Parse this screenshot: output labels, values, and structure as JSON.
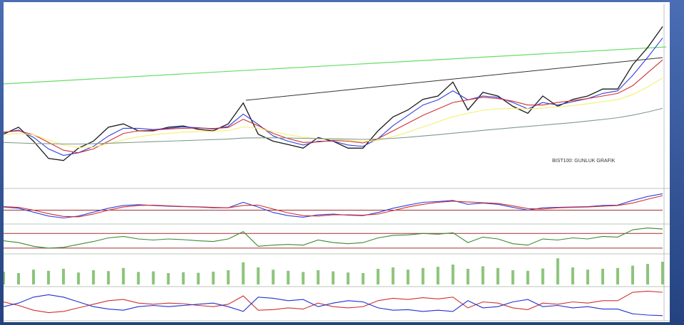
{
  "chart_data": [
    {
      "type": "line",
      "annotation": "BIST100: GUNLUK GRAFIK",
      "ylim": [
        70000,
        140000
      ],
      "series": [
        {
          "color": "#1a1a1a",
          "values": [
            90200,
            92900,
            87500,
            80800,
            80000,
            84800,
            87500,
            92900,
            94200,
            91500,
            91500,
            92900,
            93400,
            92100,
            91500,
            94200,
            102300,
            90200,
            87500,
            86200,
            84800,
            88900,
            87500,
            84800,
            84800,
            91500,
            96900,
            99600,
            103700,
            105000,
            110400,
            99600,
            106400,
            105000,
            101000,
            98300,
            105000,
            101000,
            103700,
            105000,
            107700,
            107700,
            117100,
            123800,
            131900
          ]
        },
        {
          "color": "#3040e0",
          "values": [
            90800,
            91800,
            89000,
            84500,
            82000,
            83000,
            85500,
            89500,
            92500,
            92500,
            92000,
            92500,
            93000,
            92700,
            92200,
            93200,
            98000,
            94000,
            89500,
            87500,
            86000,
            87500,
            87500,
            86000,
            85500,
            88500,
            93500,
            97500,
            101500,
            103500,
            107000,
            103500,
            105000,
            104500,
            102500,
            100000,
            102500,
            101500,
            102800,
            104000,
            106000,
            107000,
            113000,
            120000,
            127500
          ]
        },
        {
          "color": "#d03030",
          "values": [
            91000,
            91500,
            90000,
            87000,
            84000,
            83000,
            84500,
            87500,
            90500,
            91500,
            91800,
            92200,
            92500,
            92600,
            92400,
            92800,
            96000,
            93500,
            90500,
            88500,
            87000,
            87200,
            87800,
            87500,
            86800,
            88500,
            91500,
            94500,
            97500,
            100000,
            102500,
            103500,
            104500,
            104000,
            103000,
            101500,
            101500,
            102500,
            103200,
            104000,
            105000,
            106000,
            109000,
            114000,
            119000
          ]
        },
        {
          "color": "#f5ef70",
          "values": [
            90000,
            90500,
            90000,
            88000,
            86000,
            85000,
            85200,
            86500,
            88000,
            89200,
            90000,
            90500,
            91000,
            91200,
            91300,
            91600,
            93000,
            92500,
            91200,
            90000,
            89000,
            88500,
            88200,
            87800,
            87400,
            87800,
            89200,
            91000,
            93000,
            95000,
            97000,
            98300,
            99500,
            100000,
            100200,
            100000,
            100300,
            100800,
            101300,
            102000,
            102800,
            103600,
            105500,
            108500,
            112000
          ]
        },
        {
          "color": "#7f9a8a",
          "values": [
            87000,
            86800,
            86600,
            86500,
            86400,
            86400,
            86500,
            86700,
            86900,
            87100,
            87300,
            87500,
            87700,
            87900,
            88100,
            88300,
            88700,
            88800,
            88800,
            88700,
            88600,
            88500,
            88400,
            88300,
            88200,
            88300,
            88600,
            89000,
            89500,
            90000,
            90600,
            91100,
            91700,
            92200,
            92700,
            93200,
            93700,
            94200,
            94700,
            95300,
            95900,
            96600,
            97600,
            98800,
            100200
          ]
        }
      ]
    },
    {
      "type": "line",
      "ylim": [
        -3000,
        5000
      ],
      "hlines": [
        0
      ],
      "series": [
        {
          "color": "#3040e0",
          "values": [
            800,
            500,
            -500,
            -1500,
            -2000,
            -1500,
            -500,
            500,
            1200,
            1400,
            1200,
            1000,
            900,
            800,
            600,
            600,
            2000,
            800,
            -600,
            -1400,
            -1800,
            -1200,
            -1000,
            -1300,
            -1400,
            -600,
            500,
            1300,
            2000,
            2200,
            2500,
            1500,
            1800,
            1500,
            700,
            0,
            600,
            700,
            800,
            900,
            1200,
            1300,
            2500,
            3500,
            4200
          ]
        },
        {
          "color": "#d03030",
          "values": [
            900,
            700,
            0,
            -900,
            -1600,
            -1700,
            -1000,
            0,
            800,
            1200,
            1300,
            1100,
            950,
            850,
            700,
            600,
            1200,
            1300,
            300,
            -700,
            -1400,
            -1500,
            -1200,
            -1200,
            -1300,
            -1000,
            -100,
            800,
            1500,
            2000,
            2300,
            2100,
            1900,
            1700,
            1100,
            400,
            300,
            600,
            700,
            800,
            1000,
            1200,
            1800,
            2800,
            3700
          ]
        }
      ]
    },
    {
      "type": "line",
      "ylim": [
        20,
        90
      ],
      "hlines": [
        70,
        30
      ],
      "series": [
        {
          "color": "#3c8a30",
          "values": [
            50,
            45,
            35,
            30,
            32,
            40,
            48,
            58,
            62,
            55,
            52,
            55,
            53,
            50,
            48,
            55,
            75,
            35,
            38,
            40,
            38,
            52,
            45,
            42,
            45,
            58,
            65,
            66,
            70,
            68,
            72,
            45,
            60,
            55,
            42,
            38,
            55,
            52,
            58,
            55,
            62,
            60,
            80,
            85,
            82
          ]
        }
      ]
    },
    {
      "type": "bar",
      "ylim": [
        0,
        100
      ],
      "series": [
        {
          "color": "#8cc47a",
          "values": [
            45,
            40,
            52,
            48,
            55,
            42,
            50,
            47,
            58,
            44,
            46,
            40,
            43,
            41,
            45,
            50,
            78,
            60,
            52,
            48,
            44,
            50,
            46,
            42,
            40,
            55,
            60,
            52,
            58,
            62,
            70,
            55,
            64,
            58,
            50,
            48,
            56,
            92,
            60,
            52,
            55,
            58,
            66,
            72,
            80
          ]
        }
      ]
    },
    {
      "type": "line",
      "ylim": [
        0,
        50
      ],
      "series": [
        {
          "color": "#d03030",
          "values": [
            28,
            22,
            14,
            10,
            12,
            18,
            24,
            30,
            32,
            26,
            24,
            26,
            25,
            22,
            20,
            24,
            38,
            14,
            15,
            18,
            16,
            26,
            20,
            18,
            20,
            30,
            34,
            32,
            35,
            33,
            36,
            18,
            28,
            26,
            18,
            15,
            26,
            24,
            28,
            26,
            30,
            30,
            44,
            46,
            44
          ]
        },
        {
          "color": "#2030d0",
          "values": [
            20,
            26,
            36,
            40,
            36,
            28,
            20,
            16,
            14,
            20,
            22,
            20,
            22,
            24,
            26,
            20,
            12,
            36,
            34,
            30,
            32,
            20,
            26,
            30,
            28,
            18,
            14,
            15,
            12,
            14,
            12,
            30,
            18,
            20,
            28,
            32,
            20,
            22,
            18,
            20,
            16,
            16,
            8,
            6,
            5
          ]
        }
      ]
    }
  ]
}
